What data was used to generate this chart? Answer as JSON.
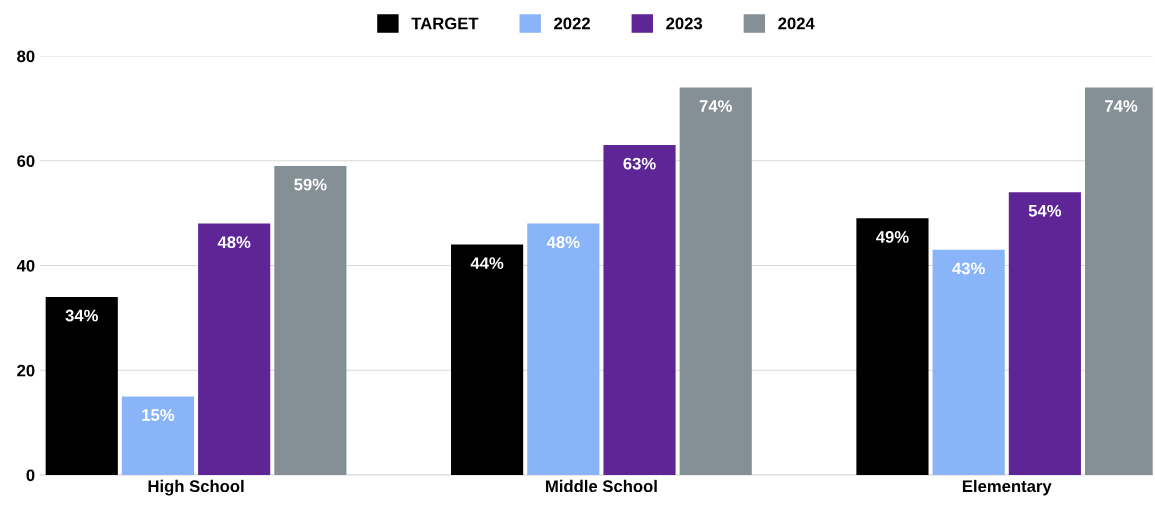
{
  "chart_data": {
    "type": "bar",
    "categories": [
      "High School",
      "Middle School",
      "Elementary"
    ],
    "series": [
      {
        "name": "TARGET",
        "color": "#000000",
        "values": [
          34,
          44,
          49
        ],
        "value_labels": [
          "34%",
          "44%",
          "49%"
        ]
      },
      {
        "name": "2022",
        "color": "#8ab4f8",
        "values": [
          15,
          48,
          43
        ],
        "value_labels": [
          "15%",
          "48%",
          "43%"
        ]
      },
      {
        "name": "2023",
        "color": "#5e2597",
        "values": [
          48,
          63,
          54
        ],
        "value_labels": [
          "48%",
          "63%",
          "54%"
        ]
      },
      {
        "name": "2024",
        "color": "#848f96",
        "values": [
          59,
          74,
          74
        ],
        "value_labels": [
          "59%",
          "74%",
          "74%"
        ]
      }
    ],
    "ylim": [
      0,
      80
    ],
    "yticks": [
      0,
      20,
      40,
      60,
      80
    ],
    "grid": "y",
    "legend": "top"
  }
}
